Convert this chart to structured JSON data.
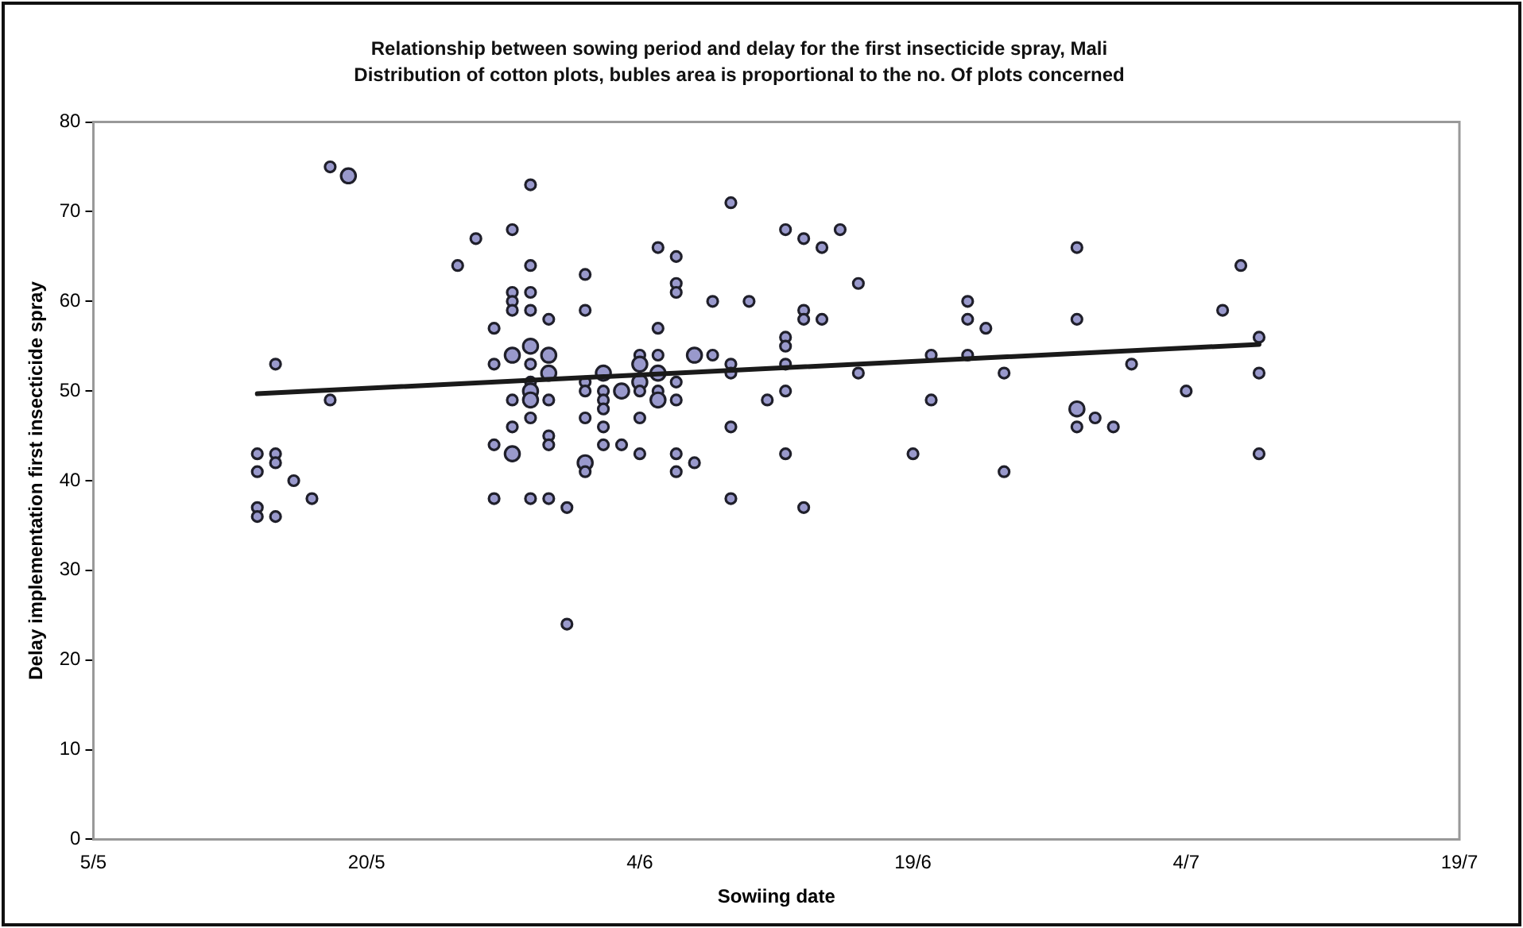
{
  "chart_data": {
    "type": "bubble",
    "title": "Relationship between sowing period and delay for the first insecticide spray, Mali",
    "subtitle": "Distribution of cotton plots, bubles area is proportional to the no. Of plots concerned",
    "xlabel": "Sowiing date",
    "ylabel": "Delay implementation first insecticide spray",
    "xlim": [
      "--05-05",
      "--07-19"
    ],
    "xticks": [
      {
        "value": "--05-05",
        "label": "5/5"
      },
      {
        "value": "--05-20",
        "label": "20/5"
      },
      {
        "value": "--06-04",
        "label": "4/6"
      },
      {
        "value": "--06-19",
        "label": "19/6"
      },
      {
        "value": "--07-04",
        "label": "4/7"
      },
      {
        "value": "--07-19",
        "label": "19/7"
      }
    ],
    "ylim": [
      0,
      80
    ],
    "yticks": [
      0,
      10,
      20,
      30,
      40,
      50,
      60,
      70,
      80
    ],
    "series": [
      {
        "color": "#9999cc",
        "x": [
          "--05-14",
          "--05-14",
          "--05-14",
          "--05-14",
          "--05-15",
          "--05-15",
          "--05-15",
          "--05-15",
          "--05-16",
          "--05-17",
          "--05-18",
          "--05-18",
          "--05-19",
          "--05-25",
          "--05-26",
          "--05-27",
          "--05-27",
          "--05-27",
          "--05-27",
          "--05-28",
          "--05-28",
          "--05-28",
          "--05-28",
          "--05-28",
          "--05-28",
          "--05-28",
          "--05-28",
          "--05-29",
          "--05-29",
          "--05-29",
          "--05-29",
          "--05-29",
          "--05-29",
          "--05-29",
          "--05-29",
          "--05-29",
          "--05-29",
          "--05-29",
          "--05-30",
          "--05-30",
          "--05-30",
          "--05-30",
          "--05-30",
          "--05-30",
          "--05-30",
          "--05-31",
          "--05-31",
          "--06-01",
          "--06-01",
          "--06-01",
          "--06-01",
          "--06-01",
          "--06-01",
          "--06-01",
          "--06-02",
          "--06-02",
          "--06-02",
          "--06-02",
          "--06-02",
          "--06-02",
          "--06-03",
          "--06-03",
          "--06-04",
          "--06-04",
          "--06-04",
          "--06-04",
          "--06-04",
          "--06-04",
          "--06-05",
          "--06-05",
          "--06-05",
          "--06-05",
          "--06-05",
          "--06-05",
          "--06-06",
          "--06-06",
          "--06-06",
          "--06-06",
          "--06-06",
          "--06-06",
          "--06-06",
          "--06-07",
          "--06-07",
          "--06-08",
          "--06-08",
          "--06-09",
          "--06-09",
          "--06-09",
          "--06-09",
          "--06-09",
          "--06-10",
          "--06-11",
          "--06-12",
          "--06-12",
          "--06-12",
          "--06-12",
          "--06-12",
          "--06-12",
          "--06-13",
          "--06-13",
          "--06-13",
          "--06-13",
          "--06-14",
          "--06-14",
          "--06-15",
          "--06-16",
          "--06-16",
          "--06-19",
          "--06-20",
          "--06-20",
          "--06-22",
          "--06-22",
          "--06-22",
          "--06-23",
          "--06-24",
          "--06-24",
          "--06-28",
          "--06-28",
          "--06-28",
          "--06-28",
          "--06-29",
          "--06-30",
          "--07-01",
          "--07-04",
          "--07-06",
          "--07-07",
          "--07-08",
          "--07-08",
          "--07-08"
        ],
        "values": [
          43,
          41,
          37,
          36,
          53,
          43,
          42,
          36,
          40,
          38,
          75,
          49,
          74,
          64,
          67,
          57,
          53,
          44,
          38,
          68,
          61,
          60,
          59,
          54,
          49,
          46,
          43,
          73,
          64,
          61,
          59,
          55,
          53,
          51,
          50,
          49,
          47,
          38,
          58,
          54,
          52,
          49,
          45,
          44,
          38,
          37,
          24,
          63,
          59,
          51,
          50,
          47,
          42,
          41,
          52,
          50,
          49,
          48,
          46,
          44,
          50,
          44,
          54,
          53,
          51,
          50,
          47,
          43,
          66,
          57,
          54,
          52,
          50,
          49,
          65,
          62,
          61,
          51,
          49,
          43,
          41,
          54,
          42,
          60,
          54,
          71,
          53,
          52,
          46,
          38,
          60,
          49,
          68,
          56,
          55,
          53,
          50,
          43,
          67,
          59,
          58,
          37,
          66,
          58,
          68,
          62,
          52,
          43,
          54,
          49,
          60,
          58,
          54,
          57,
          52,
          41,
          66,
          58,
          48,
          46,
          47,
          46,
          53,
          50,
          59,
          64,
          56,
          52,
          43
        ],
        "sizes": [
          0.5,
          0.5,
          0.5,
          0.5,
          0.5,
          0.5,
          0.5,
          0.5,
          0.5,
          0.5,
          0.5,
          0.5,
          1,
          0.5,
          0.5,
          0.5,
          0.5,
          0.5,
          0.5,
          0.5,
          0.5,
          0.5,
          0.5,
          1,
          0.5,
          0.5,
          1,
          0.5,
          0.5,
          0.5,
          0.5,
          1,
          0.5,
          0.5,
          1,
          1,
          0.5,
          0.5,
          0.5,
          1,
          1,
          0.5,
          0.5,
          0.5,
          0.5,
          0.5,
          0.5,
          0.5,
          0.5,
          0.5,
          0.5,
          0.5,
          1,
          0.5,
          1,
          0.5,
          0.5,
          0.5,
          0.5,
          0.5,
          1,
          0.5,
          0.5,
          1,
          1,
          0.5,
          0.5,
          0.5,
          0.5,
          0.5,
          0.5,
          1,
          0.5,
          1,
          0.5,
          0.5,
          0.5,
          0.5,
          0.5,
          0.5,
          0.5,
          1,
          0.5,
          0.5,
          0.5,
          0.5,
          0.5,
          0.5,
          0.5,
          0.5,
          0.5,
          0.5,
          0.5,
          0.5,
          0.5,
          0.5,
          0.5,
          0.5,
          0.5,
          0.5,
          0.5,
          0.5,
          0.5,
          0.5,
          0.5,
          0.5,
          0.5,
          0.5,
          0.5,
          0.5,
          0.5,
          0.5,
          0.5,
          0.5,
          0.5,
          0.5,
          0.5,
          0.5,
          1,
          0.5,
          0.5,
          0.5,
          0.5,
          0.5,
          0.5,
          0.5,
          0.5,
          0.5,
          0.5
        ]
      },
      {
        "type": "line",
        "color": "#1a1a1a",
        "x": [
          "--05-14",
          "--07-08"
        ],
        "values": [
          49.7,
          55.2
        ]
      }
    ]
  }
}
